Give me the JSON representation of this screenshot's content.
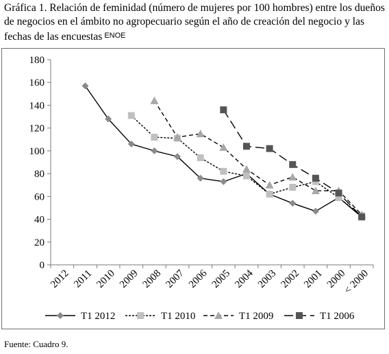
{
  "title": "Gráfica 1. Relación de feminidad (número de mujeres por 100 hombres) entre los dueños de negocios en el ámbito no agropecuario según el año de creación del negocio y las fechas de las encuestas",
  "title_superscript": "ENOE",
  "source": "Fuente: Cuadro 9.",
  "chart_data": {
    "type": "line",
    "categories": [
      "2012",
      "2011",
      "2010",
      "2009",
      "2008",
      "2007",
      "2006",
      "2005",
      "2004",
      "2003",
      "2002",
      "2001",
      "2000",
      "< 2000"
    ],
    "ylim": [
      0,
      180
    ],
    "yticks": [
      0,
      20,
      40,
      60,
      80,
      100,
      120,
      140,
      160,
      180
    ],
    "grid": false,
    "legend_position": "bottom",
    "series": [
      {
        "name": "T1 2012",
        "line": "solid",
        "marker": "diamond",
        "color": "#8a8a8a",
        "values": [
          null,
          157,
          128,
          106,
          100,
          95,
          76,
          73,
          80,
          62,
          54,
          47,
          59,
          42
        ]
      },
      {
        "name": "T1 2010",
        "line": "dotted",
        "marker": "square",
        "color": "#c0c0c0",
        "values": [
          null,
          null,
          null,
          131,
          112,
          111,
          94,
          82,
          78,
          62,
          68,
          73,
          59,
          43
        ]
      },
      {
        "name": "T1 2009",
        "line": "dashed",
        "marker": "triangle",
        "color": "#a8a8a8",
        "values": [
          null,
          null,
          null,
          null,
          144,
          112,
          115,
          103,
          84,
          70,
          77,
          65,
          65,
          44
        ]
      },
      {
        "name": "T1 2006",
        "line": "longdash",
        "marker": "square",
        "color": "#555555",
        "values": [
          null,
          null,
          null,
          null,
          null,
          null,
          null,
          136,
          104,
          102,
          88,
          76,
          63,
          42
        ]
      }
    ]
  }
}
